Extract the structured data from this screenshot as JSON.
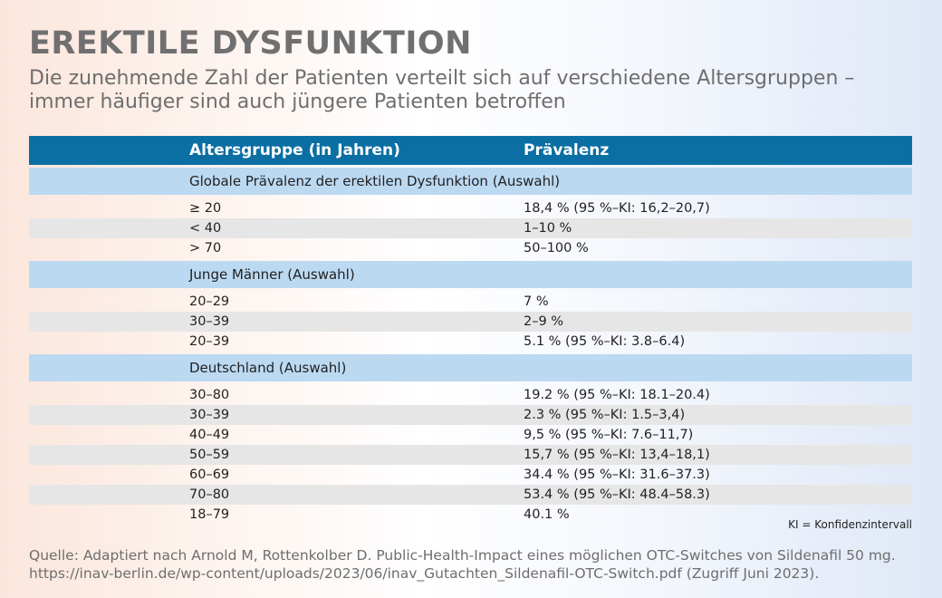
{
  "title": "EREKTILE DYSFUNKTION",
  "subtitle": "Die zunehmende Zahl der Patienten verteilt sich auf verschiedene Altersgruppen – immer häufiger sind auch jüngere Patienten betroffen",
  "colors": {
    "header": "#0b6fa3",
    "section": "#bcd9f2",
    "stripe": "#e6e6e6",
    "title": "#707070"
  },
  "chart_data": {
    "type": "table",
    "columns": [
      "Altersgruppe (in Jahren)",
      "Prävalenz"
    ],
    "sections": [
      {
        "label": "Globale Prävalenz der erektilen Dysfunktion (Auswahl)",
        "rows": [
          [
            "≥ 20",
            "18,4 % (95 %–KI: 16,2–20,7)"
          ],
          [
            "< 40",
            "1–10 %"
          ],
          [
            "> 70",
            "50–100 %"
          ]
        ]
      },
      {
        "label": "Junge Männer (Auswahl)",
        "rows": [
          [
            "20–29",
            "7 %"
          ],
          [
            "30–39",
            "2–9 %"
          ],
          [
            "20–39",
            "5.1 % (95 %–KI: 3.8–6.4)"
          ]
        ]
      },
      {
        "label": "Deutschland (Auswahl)",
        "rows": [
          [
            "30–80",
            "19.2 % (95 %–KI: 18.1–20.4)"
          ],
          [
            "30–39",
            "2.3 % (95 %–KI: 1.5–3,4)"
          ],
          [
            "40–49",
            "9,5 % (95 %–KI: 7.6–11,7)"
          ],
          [
            "50–59",
            "15,7 % (95 %–KI: 13,4–18,1)"
          ],
          [
            "60–69",
            "34.4 % (95 %–KI: 31.6–37.3)"
          ],
          [
            "70–80",
            "53.4 % (95 %–KI: 48.4–58.3)"
          ],
          [
            "18–79",
            "40.1 %"
          ]
        ]
      }
    ]
  },
  "footnote": "KI = Konfidenzintervall",
  "source_line1": "Quelle: Adaptiert nach Arnold M, Rottenkolber D. Public-Health-Impact eines möglichen OTC-Switches von Sildenafil 50 mg.",
  "source_line2": "https://inav-berlin.de/wp-content/uploads/2023/06/inav_Gutachten_Sildenafil-OTC-Switch.pdf (Zugriff Juni 2023)."
}
